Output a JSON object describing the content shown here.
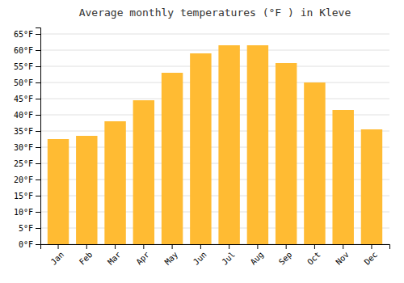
{
  "chart_data": {
    "type": "bar",
    "title": "Average monthly temperatures (°F ) in Kleve",
    "categories": [
      "Jan",
      "Feb",
      "Mar",
      "Apr",
      "May",
      "Jun",
      "Jul",
      "Aug",
      "Sep",
      "Oct",
      "Nov",
      "Dec"
    ],
    "values": [
      32.5,
      33.5,
      38.0,
      44.5,
      53.0,
      59.0,
      61.5,
      61.5,
      56.0,
      50.0,
      41.5,
      35.5
    ],
    "color": "#FFBB33",
    "ylim": [
      0,
      67
    ],
    "yticks": [
      {
        "value": 0,
        "label": "0°F"
      },
      {
        "value": 5,
        "label": "5°F"
      },
      {
        "value": 10,
        "label": "10°F"
      },
      {
        "value": 15,
        "label": "15°F"
      },
      {
        "value": 20,
        "label": "20°F"
      },
      {
        "value": 25,
        "label": "25°F"
      },
      {
        "value": 30,
        "label": "30°F"
      },
      {
        "value": 35,
        "label": "35°F"
      },
      {
        "value": 40,
        "label": "40°F"
      },
      {
        "value": 45,
        "label": "45°F"
      },
      {
        "value": 50,
        "label": "50°F"
      },
      {
        "value": 55,
        "label": "55°F"
      },
      {
        "value": 60,
        "label": "60°F"
      },
      {
        "value": 65,
        "label": "65°F"
      }
    ],
    "grid": true
  }
}
